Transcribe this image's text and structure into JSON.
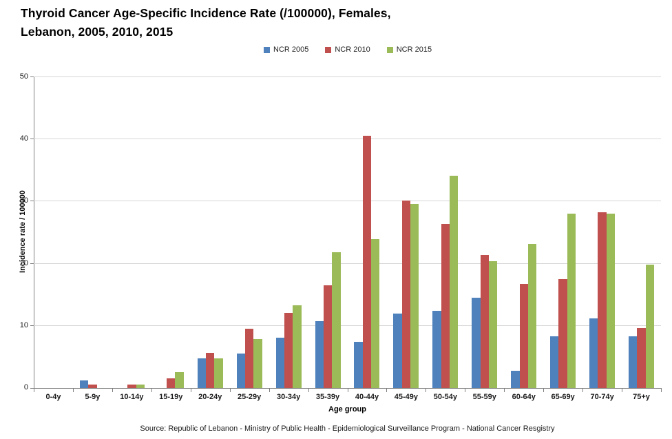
{
  "title": {
    "line1": "Thyroid Cancer Age-Specific Incidence Rate (/100000), Females,",
    "line2": "Lebanon, 2005, 2010, 2015"
  },
  "axes": {
    "y_title": "Incidence rate / 100000",
    "x_title": "Age group",
    "y_ticks": [
      0,
      10,
      20,
      30,
      40,
      50
    ]
  },
  "source": "Source: Republic of Lebanon - Ministry of Public Health - Epidemiological Surveillance Program - National Cancer Resgistry",
  "colors": {
    "series_blue": "#4F81BD",
    "series_red": "#C0504D",
    "series_green": "#9BBB59",
    "gridline": "#D6D6D6",
    "axis_line": "#7F7F7F"
  },
  "chart_data": {
    "type": "bar",
    "title": "Thyroid Cancer Age-Specific Incidence Rate (/100000), Females, Lebanon, 2005, 2010, 2015",
    "categories": [
      "0-4y",
      "5-9y",
      "10-14y",
      "15-19y",
      "20-24y",
      "25-29y",
      "30-34y",
      "35-39y",
      "40-44y",
      "45-49y",
      "50-54y",
      "55-59y",
      "60-64y",
      "65-69y",
      "70-74y",
      "75+y"
    ],
    "series": [
      {
        "name": "NCR 2005",
        "color": "#4F81BD",
        "values": [
          0,
          1.2,
          0,
          0,
          4.8,
          5.5,
          8.1,
          10.8,
          7.4,
          12.0,
          12.4,
          14.5,
          2.8,
          8.3,
          11.2,
          8.3
        ]
      },
      {
        "name": "NCR 2010",
        "color": "#C0504D",
        "values": [
          0,
          0.5,
          0.5,
          1.5,
          5.6,
          9.5,
          12.1,
          16.5,
          40.6,
          30.1,
          26.4,
          21.4,
          16.7,
          17.5,
          28.3,
          9.7
        ]
      },
      {
        "name": "NCR 2015",
        "color": "#9BBB59",
        "values": [
          0,
          0,
          0.6,
          2.5,
          4.8,
          7.9,
          13.3,
          21.8,
          24.0,
          29.6,
          34.1,
          20.4,
          23.2,
          28.0,
          28.1,
          19.9
        ]
      }
    ],
    "xlabel": "Age group",
    "ylabel": "Incidence rate / 100000",
    "ylim": [
      0,
      50
    ],
    "grid": true,
    "legend_position": "top-center"
  }
}
